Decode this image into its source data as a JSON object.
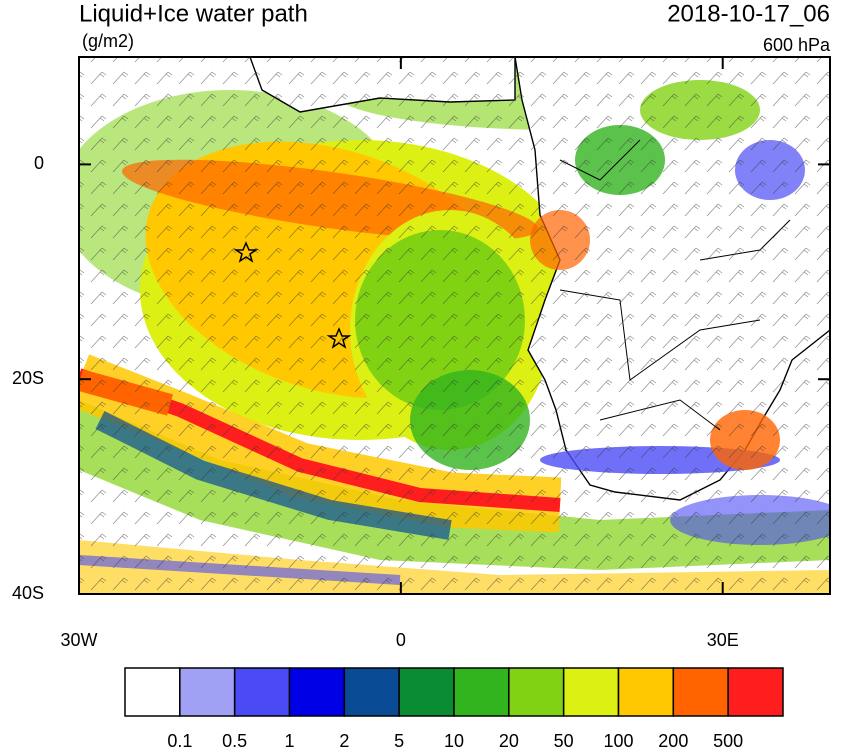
{
  "title": "Liquid+Ice water path",
  "units": "(g/m2)",
  "valid_time": "2018-10-17_06",
  "level": "600 hPa",
  "lat_ticks": [
    {
      "value": 0,
      "label": "0"
    },
    {
      "value": -20,
      "label": "20S"
    },
    {
      "value": -40,
      "label": "40S"
    }
  ],
  "lon_ticks": [
    {
      "value": -30,
      "label": "30W"
    },
    0,
    {
      "value": 30,
      "label": "30E"
    }
  ],
  "lat_range": [
    -40,
    10
  ],
  "lon_range": [
    -30,
    40
  ],
  "colorbar": {
    "levels": [
      0.1,
      0.5,
      1,
      2,
      5,
      10,
      20,
      50,
      100,
      200,
      500
    ],
    "colors": [
      "#ffffff",
      "#a0a0f5",
      "#4b4bf5",
      "#0000e6",
      "#0a4b96",
      "#0a8c32",
      "#32b41e",
      "#82d214",
      "#dcf014",
      "#ffc800",
      "#ff6400",
      "#ff1e1e"
    ]
  }
}
